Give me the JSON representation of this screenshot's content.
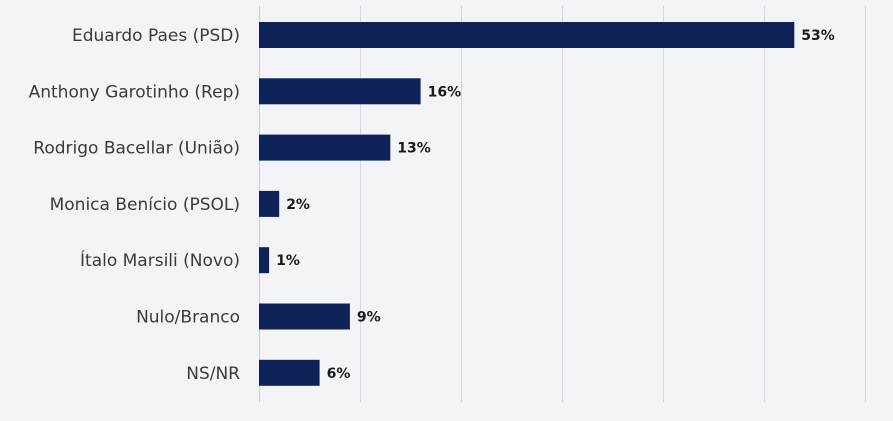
{
  "chart_data": {
    "type": "bar",
    "orientation": "horizontal",
    "categories": [
      "Eduardo Paes (PSD)",
      "Anthony Garotinho (Rep)",
      "Rodrigo Bacellar (União)",
      "Monica Benício (PSOL)",
      "Ítalo Marsili (Novo)",
      "Nulo/Branco",
      "NS/NR"
    ],
    "values": [
      53,
      16,
      13,
      2,
      1,
      9,
      6
    ],
    "value_labels": [
      "53%",
      "16%",
      "13%",
      "2%",
      "1%",
      "9%",
      "6%"
    ],
    "title": "",
    "xlabel": "",
    "ylabel": "",
    "xlim": [
      0,
      60
    ],
    "grid": true,
    "legend": "none",
    "bar_color": "#0f2257"
  }
}
